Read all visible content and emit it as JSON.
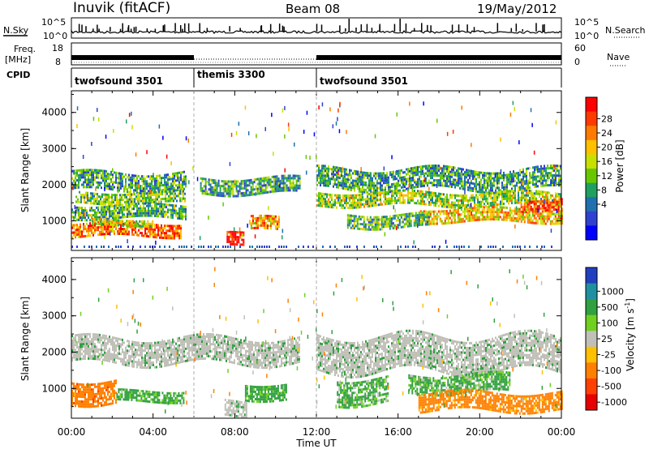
{
  "header": {
    "station": "Inuvik (fitACF)",
    "beam": "Beam 08",
    "date": "19/May/2012"
  },
  "nsky_panel": {
    "left_label": "N.Sky",
    "left_ticks": [
      "10^5",
      "10^0"
    ],
    "right_label": "N.Search",
    "right_ticks": [
      "10^5",
      "10^0"
    ]
  },
  "freq_panel": {
    "left_label_line1": "Freq.",
    "left_label_line2": "[MHz]",
    "left_ticks": [
      "18",
      "8"
    ],
    "right_label": "Nave",
    "right_ticks": [
      "60",
      "0"
    ]
  },
  "cpid_panel": {
    "label": "CPID",
    "segments": [
      {
        "name": "twofsound 3501",
        "start": "00:00",
        "end": "06:00"
      },
      {
        "name": "themis 3300",
        "start": "06:00",
        "end": "12:00"
      },
      {
        "name": "twofsound 3501",
        "start": "12:00",
        "end": "24:00"
      }
    ]
  },
  "power_colorbar": {
    "label": "Power [dB]",
    "ticks": [
      "28",
      "24",
      "20",
      "16",
      "12",
      "8",
      "4"
    ],
    "colors": [
      "#ff0000",
      "#ff3a00",
      "#ff7a00",
      "#ffc000",
      "#c8e000",
      "#68c800",
      "#20a060",
      "#2070b0",
      "#3040d0",
      "#0000ff"
    ]
  },
  "velocity_colorbar": {
    "label": "Velocity [m s^-1]",
    "ticks": [
      "1000",
      "500",
      "100",
      "25",
      "-25",
      "-100",
      "-500",
      "-1000"
    ],
    "colors": [
      "#2040c0",
      "#2090a0",
      "#30a040",
      "#70d020",
      "#c0c0b8",
      "#ffc000",
      "#ff8000",
      "#ff4000",
      "#e80000"
    ]
  },
  "chart_data": [
    {
      "type": "heatmap",
      "quantity": "Power",
      "ylabel": "Slant Range [km]",
      "ylim": [
        180,
        4600
      ],
      "yticks": [
        1000,
        2000,
        3000,
        4000
      ],
      "xlim": [
        0,
        24
      ],
      "bands": [
        {
          "t": [
            0.0,
            5.6
          ],
          "r": [
            1850,
            2350
          ],
          "level": 0.35
        },
        {
          "t": [
            0.2,
            5.6
          ],
          "r": [
            1500,
            1800
          ],
          "level": 0.45
        },
        {
          "t": [
            0.0,
            5.6
          ],
          "r": [
            1100,
            1450
          ],
          "level": 0.4
        },
        {
          "t": [
            0.0,
            5.4
          ],
          "r": [
            600,
            950
          ],
          "level": 0.8
        },
        {
          "t": [
            1.0,
            4.0
          ],
          "r": [
            850,
            1050
          ],
          "level": 0.55
        },
        {
          "t": [
            6.3,
            11.2
          ],
          "r": [
            1750,
            2200
          ],
          "level": 0.35
        },
        {
          "t": [
            8.7,
            10.2
          ],
          "r": [
            700,
            1100
          ],
          "level": 0.7
        },
        {
          "t": [
            7.6,
            8.4
          ],
          "r": [
            250,
            650
          ],
          "level": 0.98
        },
        {
          "t": [
            12.0,
            24.0
          ],
          "r": [
            1850,
            2450
          ],
          "level": 0.35
        },
        {
          "t": [
            12.0,
            24.0
          ],
          "r": [
            1400,
            1800
          ],
          "level": 0.5
        },
        {
          "t": [
            17.0,
            24.0
          ],
          "r": [
            1000,
            1350
          ],
          "level": 0.65
        },
        {
          "t": [
            22.0,
            24.0
          ],
          "r": [
            1300,
            1600
          ],
          "level": 0.85
        },
        {
          "t": [
            13.5,
            17.5
          ],
          "r": [
            800,
            1200
          ],
          "level": 0.4
        }
      ]
    },
    {
      "type": "heatmap",
      "quantity": "Velocity",
      "ylabel": "Slant Range [km]",
      "xlabel": "Time UT",
      "ylim": [
        180,
        4600
      ],
      "yticks": [
        1000,
        2000,
        3000,
        4000
      ],
      "xlim": [
        0,
        24
      ],
      "xticks": [
        "00:00",
        "04:00",
        "08:00",
        "12:00",
        "16:00",
        "20:00",
        "00:00"
      ],
      "bands": [
        {
          "t": [
            0.0,
            11.2
          ],
          "r": [
            1700,
            2400
          ],
          "velocity": 0
        },
        {
          "t": [
            12.0,
            24.0
          ],
          "r": [
            1500,
            2450
          ],
          "velocity": 0
        },
        {
          "t": [
            0.0,
            2.2
          ],
          "r": [
            600,
            1250
          ],
          "velocity": -300
        },
        {
          "t": [
            2.2,
            5.5
          ],
          "r": [
            650,
            950
          ],
          "velocity": 150
        },
        {
          "t": [
            8.5,
            10.5
          ],
          "r": [
            700,
            1150
          ],
          "velocity": 150
        },
        {
          "t": [
            13.0,
            15.5
          ],
          "r": [
            600,
            1300
          ],
          "velocity": 120
        },
        {
          "t": [
            16.5,
            21.5
          ],
          "r": [
            900,
            1400
          ],
          "velocity": 120
        },
        {
          "t": [
            17.0,
            24.0
          ],
          "r": [
            400,
            900
          ],
          "velocity": -200
        },
        {
          "t": [
            7.5,
            8.6
          ],
          "r": [
            250,
            700
          ],
          "velocity": 0
        }
      ]
    }
  ]
}
